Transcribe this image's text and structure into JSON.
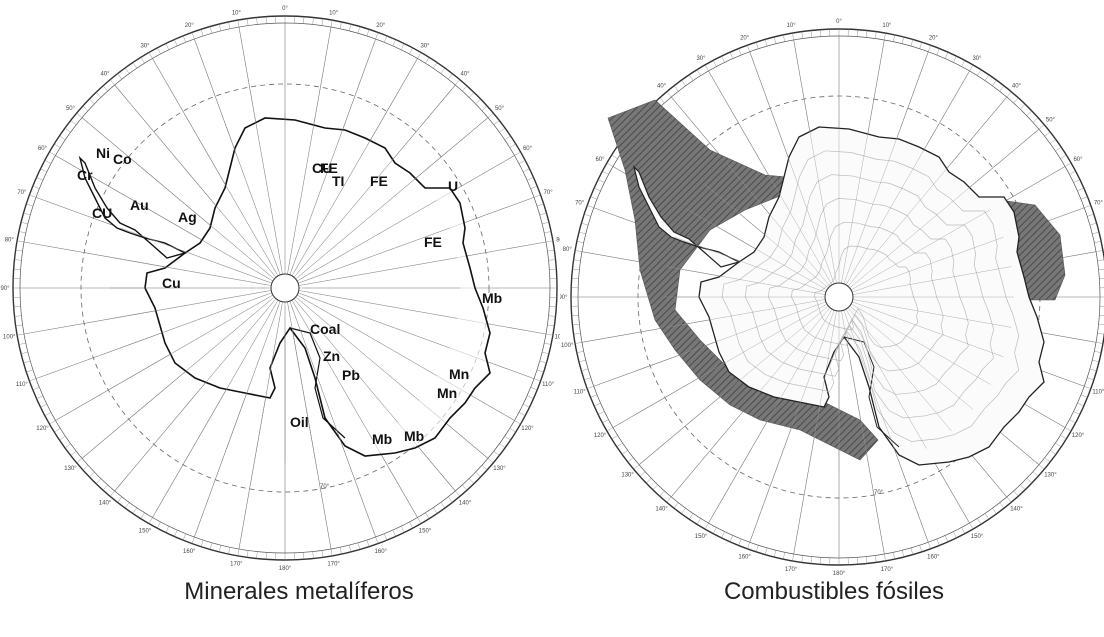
{
  "left_map": {
    "caption": "Minerales metalíferos",
    "labels": [
      "Ni",
      "Co",
      "Cr",
      "CU",
      "Au",
      "Ag",
      "Cu",
      "CU",
      "FE",
      "TI",
      "FE",
      "U",
      "FE",
      "Mb",
      "Coal",
      "Zn",
      "Pb",
      "Mn",
      "Mn",
      "Oil",
      "Mb",
      "Mb"
    ]
  },
  "right_map": {
    "caption": "Combustibles fósiles"
  },
  "grid": {
    "longitude_labels": [
      "0°",
      "10°",
      "20°",
      "30°",
      "40°",
      "50°",
      "60°",
      "70°",
      "80°",
      "90°",
      "100°",
      "110°",
      "120°",
      "130°",
      "140°",
      "150°",
      "160°",
      "170°",
      "180°",
      "170°",
      "160°",
      "150°",
      "140°",
      "130°",
      "120°",
      "110°",
      "100°",
      "90°",
      "80°",
      "70°",
      "60°",
      "50°",
      "40°",
      "30°",
      "20°",
      "10°"
    ],
    "latitude_label": "70°"
  }
}
